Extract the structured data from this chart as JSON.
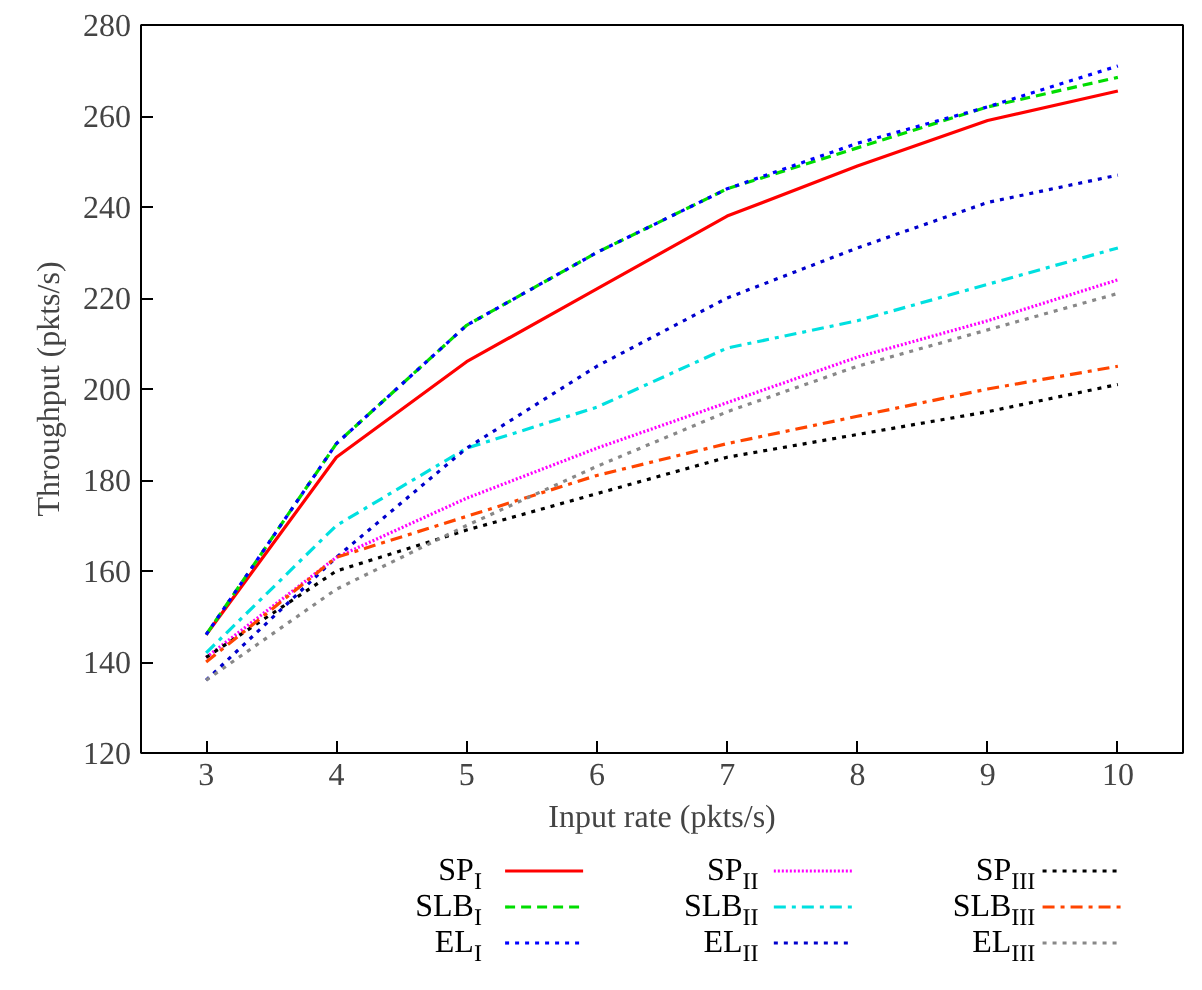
{
  "chart_data": {
    "type": "line",
    "xlabel": "Input rate (pkts/s)",
    "ylabel": "Throughput (pkts/s)",
    "x": [
      3,
      4,
      5,
      6,
      7,
      8,
      9,
      10
    ],
    "xlim": [
      2.5,
      10.5
    ],
    "xticks": [
      3,
      4,
      5,
      6,
      7,
      8,
      9,
      10
    ],
    "ylim": [
      120,
      280
    ],
    "yticks": [
      120,
      140,
      160,
      180,
      200,
      220,
      240,
      260,
      280
    ],
    "grid": false,
    "legend": "bottom",
    "marker": "none",
    "series": [
      {
        "name": "SP$_{I}$",
        "color": "#ff0000",
        "line_style": "solid",
        "values": [
          146,
          185,
          206,
          222,
          238,
          249,
          259,
          265.5
        ]
      },
      {
        "name": "SLB$_{I}$",
        "color": "#00dd00",
        "line_style": "dashed",
        "values": [
          146,
          188,
          214,
          230,
          244,
          253,
          262,
          268.5
        ]
      },
      {
        "name": "EL$_{I}$",
        "color": "#0000ff",
        "line_style": "dotted",
        "values": [
          146,
          188,
          214,
          230,
          244,
          254,
          262,
          271
        ]
      },
      {
        "name": "SP$_{II}$",
        "color": "#ff00ff",
        "line_style": "finedotted",
        "values": [
          141,
          163,
          176,
          187,
          197,
          207,
          215,
          224
        ]
      },
      {
        "name": "SLB$_{II}$",
        "color": "#00e0e0",
        "line_style": "dashdot",
        "values": [
          142,
          170,
          187,
          196,
          209,
          215,
          223,
          231
        ]
      },
      {
        "name": "EL$_{II}$",
        "color": "#0000cc",
        "line_style": "dotted",
        "values": [
          136,
          163,
          187,
          205,
          220,
          231,
          241,
          247
        ]
      },
      {
        "name": "SP$_{III}$",
        "color": "#000000",
        "line_style": "dotted",
        "values": [
          141,
          160,
          169,
          177,
          185,
          190,
          195,
          201
        ]
      },
      {
        "name": "SLB$_{III}$",
        "color": "#ff4500",
        "line_style": "dashdot",
        "values": [
          140,
          163,
          172,
          181,
          188,
          194,
          200,
          205
        ]
      },
      {
        "name": "EL$_{III}$",
        "color": "#888888",
        "line_style": "dotted",
        "values": [
          136,
          156,
          170,
          183,
          195,
          205,
          213,
          221
        ]
      }
    ]
  }
}
